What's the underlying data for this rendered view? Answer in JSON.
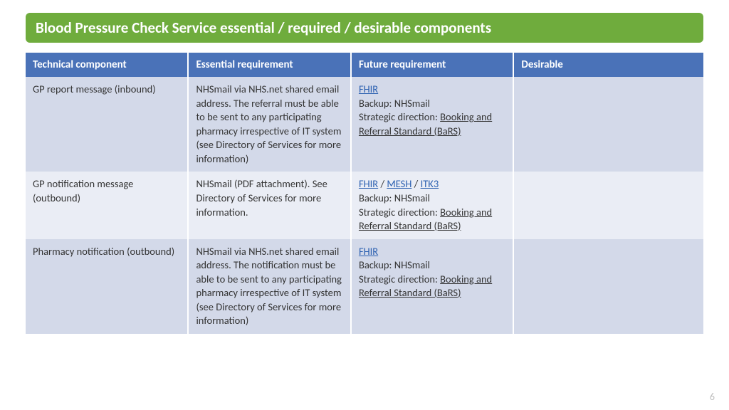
{
  "title": "Blood Pressure Check Service essential / required / desirable components",
  "page_number": "6",
  "colors": {
    "title_bg": "#6fac3d",
    "header_bg": "#4a72b8",
    "row_a_bg": "#d3d9e9",
    "row_b_bg": "#eaedf5",
    "link_color": "#2a5fb0",
    "text_color": "#333333",
    "page_num_color": "#bfbfbf"
  },
  "table": {
    "columns": [
      "Technical component",
      "Essential requirement",
      "Future requirement",
      "Desirable"
    ],
    "col_widths_pct": [
      24,
      24,
      24,
      28
    ],
    "rows": [
      {
        "technical": "GP report message (inbound)",
        "essential": "NHSmail via NHS.net shared email address. The referral must be able to be sent to any participating pharmacy irrespective of IT system (see Directory of Services for more information)",
        "future": {
          "links1": [
            "FHIR"
          ],
          "backup": "Backup: NHSmail",
          "strategic_prefix": "Strategic direction: ",
          "strategic_link": "Booking and Referral Standard (BaRS)"
        },
        "desirable": ""
      },
      {
        "technical": "GP notification message (outbound)",
        "essential": "NHSmail (PDF attachment). See Directory of Services for more information.",
        "future": {
          "links1": [
            "FHIR",
            "MESH",
            "ITK3"
          ],
          "backup": "Backup: NHSmail",
          "strategic_prefix": "Strategic direction: ",
          "strategic_link": "Booking and Referral Standard (BaRS)"
        },
        "desirable": ""
      },
      {
        "technical": "Pharmacy notification (outbound)",
        "essential": "NHSmail via NHS.net shared email address. The notification must be able to be sent to any participating pharmacy irrespective of IT system (see Directory of Services for more information)",
        "future": {
          "links1": [
            "FHIR"
          ],
          "backup": "Backup: NHSmail",
          "strategic_prefix": "Strategic direction: ",
          "strategic_link": "Booking and Referral Standard (BaRS)"
        },
        "desirable": ""
      }
    ]
  }
}
